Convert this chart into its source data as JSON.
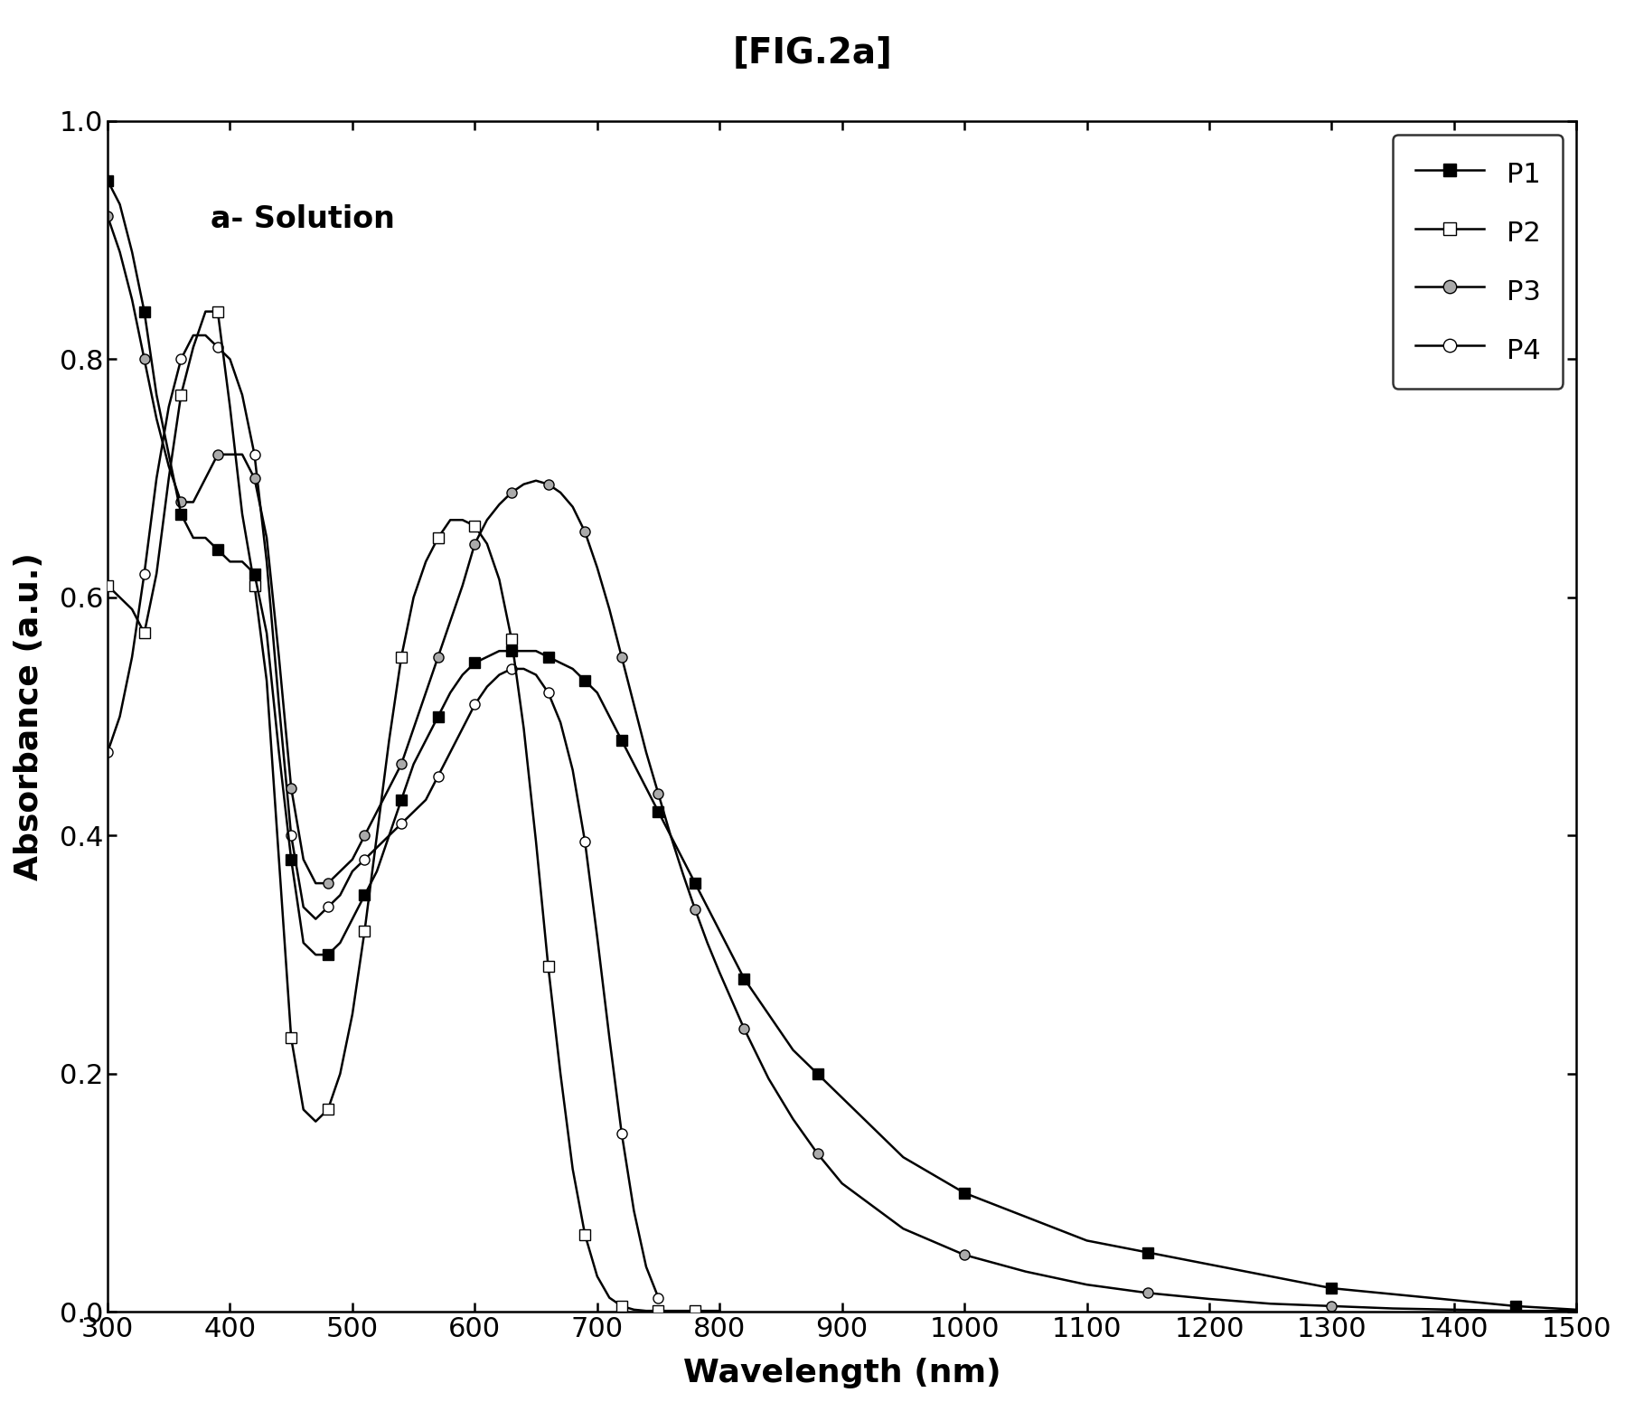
{
  "title": "[FIG.2a]",
  "annotation": "a- Solution",
  "xlabel": "Wavelength (nm)",
  "ylabel": "Absorbance (a.u.)",
  "xlim": [
    300,
    1500
  ],
  "ylim": [
    0.0,
    1.0
  ],
  "xticks": [
    300,
    400,
    500,
    600,
    700,
    800,
    900,
    1000,
    1100,
    1200,
    1300,
    1400,
    1500
  ],
  "yticks": [
    0.0,
    0.2,
    0.4,
    0.6,
    0.8,
    1.0
  ],
  "background_color": "#ffffff",
  "series": [
    {
      "label": "P1",
      "color": "#000000",
      "marker": "s",
      "markerfacecolor": "#000000",
      "markersize": 8,
      "linewidth": 1.8,
      "x": [
        300,
        310,
        320,
        330,
        340,
        350,
        360,
        370,
        380,
        390,
        400,
        410,
        420,
        430,
        440,
        450,
        460,
        470,
        480,
        490,
        500,
        510,
        520,
        530,
        540,
        550,
        560,
        570,
        580,
        590,
        600,
        610,
        620,
        630,
        640,
        650,
        660,
        670,
        680,
        690,
        700,
        710,
        720,
        730,
        740,
        750,
        760,
        770,
        780,
        790,
        800,
        820,
        840,
        860,
        880,
        900,
        950,
        1000,
        1050,
        1100,
        1150,
        1200,
        1250,
        1300,
        1350,
        1400,
        1450,
        1500
      ],
      "y": [
        0.95,
        0.93,
        0.89,
        0.84,
        0.77,
        0.72,
        0.67,
        0.65,
        0.65,
        0.64,
        0.63,
        0.63,
        0.62,
        0.57,
        0.47,
        0.38,
        0.31,
        0.3,
        0.3,
        0.31,
        0.33,
        0.35,
        0.37,
        0.4,
        0.43,
        0.46,
        0.48,
        0.5,
        0.52,
        0.535,
        0.545,
        0.55,
        0.555,
        0.555,
        0.555,
        0.555,
        0.55,
        0.545,
        0.54,
        0.53,
        0.52,
        0.5,
        0.48,
        0.46,
        0.44,
        0.42,
        0.4,
        0.38,
        0.36,
        0.34,
        0.32,
        0.28,
        0.25,
        0.22,
        0.2,
        0.18,
        0.13,
        0.1,
        0.08,
        0.06,
        0.05,
        0.04,
        0.03,
        0.02,
        0.015,
        0.01,
        0.005,
        0.002
      ]
    },
    {
      "label": "P2",
      "color": "#000000",
      "marker": "s",
      "markerfacecolor": "#ffffff",
      "markersize": 8,
      "linewidth": 1.8,
      "x": [
        300,
        310,
        320,
        330,
        340,
        350,
        360,
        370,
        380,
        390,
        400,
        410,
        420,
        430,
        440,
        450,
        460,
        470,
        480,
        490,
        500,
        510,
        520,
        530,
        540,
        550,
        560,
        570,
        580,
        590,
        600,
        610,
        620,
        630,
        640,
        650,
        660,
        670,
        680,
        690,
        700,
        710,
        720,
        730,
        740,
        750,
        760,
        770,
        780,
        790,
        800
      ],
      "y": [
        0.61,
        0.6,
        0.59,
        0.57,
        0.62,
        0.7,
        0.77,
        0.81,
        0.84,
        0.84,
        0.76,
        0.67,
        0.61,
        0.53,
        0.38,
        0.23,
        0.17,
        0.16,
        0.17,
        0.2,
        0.25,
        0.32,
        0.4,
        0.48,
        0.55,
        0.6,
        0.63,
        0.65,
        0.665,
        0.665,
        0.66,
        0.645,
        0.615,
        0.565,
        0.49,
        0.395,
        0.29,
        0.2,
        0.12,
        0.065,
        0.03,
        0.012,
        0.005,
        0.002,
        0.001,
        0.001,
        0.001,
        0.001,
        0.001,
        0.001,
        0.001
      ]
    },
    {
      "label": "P3",
      "color": "#000000",
      "marker": "o",
      "markerfacecolor": "#aaaaaa",
      "markersize": 8,
      "linewidth": 1.8,
      "x": [
        300,
        310,
        320,
        330,
        340,
        350,
        360,
        370,
        380,
        390,
        400,
        410,
        420,
        430,
        440,
        450,
        460,
        470,
        480,
        490,
        500,
        510,
        520,
        530,
        540,
        550,
        560,
        570,
        580,
        590,
        600,
        610,
        620,
        630,
        640,
        650,
        660,
        670,
        680,
        690,
        700,
        710,
        720,
        730,
        740,
        750,
        760,
        770,
        780,
        790,
        800,
        820,
        840,
        860,
        880,
        900,
        950,
        1000,
        1050,
        1100,
        1150,
        1200,
        1250,
        1300,
        1350,
        1400,
        1450,
        1500
      ],
      "y": [
        0.92,
        0.89,
        0.85,
        0.8,
        0.75,
        0.71,
        0.68,
        0.68,
        0.7,
        0.72,
        0.72,
        0.72,
        0.7,
        0.65,
        0.55,
        0.44,
        0.38,
        0.36,
        0.36,
        0.37,
        0.38,
        0.4,
        0.42,
        0.44,
        0.46,
        0.49,
        0.52,
        0.55,
        0.58,
        0.61,
        0.645,
        0.665,
        0.678,
        0.688,
        0.695,
        0.698,
        0.695,
        0.688,
        0.676,
        0.655,
        0.625,
        0.59,
        0.55,
        0.51,
        0.47,
        0.435,
        0.4,
        0.368,
        0.338,
        0.31,
        0.285,
        0.238,
        0.196,
        0.162,
        0.133,
        0.108,
        0.07,
        0.048,
        0.034,
        0.023,
        0.016,
        0.011,
        0.007,
        0.005,
        0.003,
        0.002,
        0.001,
        0.001
      ]
    },
    {
      "label": "P4",
      "color": "#000000",
      "marker": "o",
      "markerfacecolor": "#ffffff",
      "markersize": 8,
      "linewidth": 1.8,
      "x": [
        300,
        310,
        320,
        330,
        340,
        350,
        360,
        370,
        380,
        390,
        400,
        410,
        420,
        430,
        440,
        450,
        460,
        470,
        480,
        490,
        500,
        510,
        520,
        530,
        540,
        550,
        560,
        570,
        580,
        590,
        600,
        610,
        620,
        630,
        640,
        650,
        660,
        670,
        680,
        690,
        700,
        710,
        720,
        730,
        740,
        750
      ],
      "y": [
        0.47,
        0.5,
        0.55,
        0.62,
        0.7,
        0.76,
        0.8,
        0.82,
        0.82,
        0.81,
        0.8,
        0.77,
        0.72,
        0.63,
        0.51,
        0.4,
        0.34,
        0.33,
        0.34,
        0.35,
        0.37,
        0.38,
        0.39,
        0.4,
        0.41,
        0.42,
        0.43,
        0.45,
        0.47,
        0.49,
        0.51,
        0.525,
        0.535,
        0.54,
        0.54,
        0.535,
        0.52,
        0.495,
        0.455,
        0.395,
        0.315,
        0.23,
        0.15,
        0.085,
        0.038,
        0.012
      ]
    }
  ]
}
